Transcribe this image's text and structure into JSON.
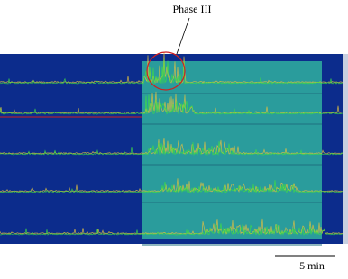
{
  "annotation": "Phase III",
  "scale_bar": "5 min"
}
